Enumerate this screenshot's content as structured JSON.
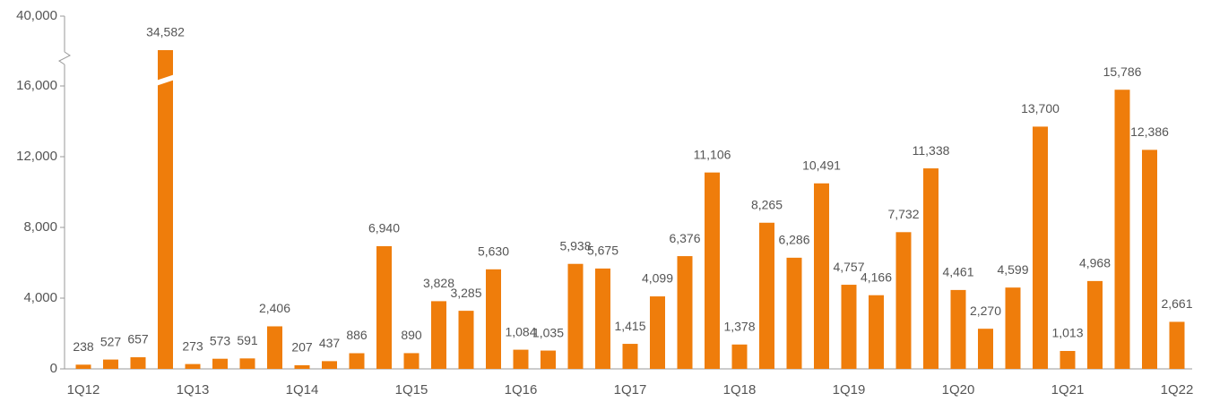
{
  "chart_data": {
    "type": "bar",
    "categories": [
      "1Q12",
      null,
      null,
      null,
      "1Q13",
      null,
      null,
      null,
      "1Q14",
      null,
      null,
      null,
      "1Q15",
      null,
      null,
      null,
      "1Q16",
      null,
      null,
      null,
      "1Q17",
      null,
      null,
      null,
      "1Q18",
      null,
      null,
      null,
      "1Q19",
      null,
      null,
      null,
      "1Q20",
      null,
      null,
      null,
      "1Q21",
      null,
      null,
      null,
      "1Q22"
    ],
    "values": [
      238,
      527,
      657,
      34582,
      273,
      573,
      591,
      2406,
      207,
      437,
      886,
      6940,
      890,
      3828,
      3285,
      5630,
      1084,
      1035,
      5938,
      5675,
      1415,
      4099,
      6376,
      11106,
      1378,
      8265,
      6286,
      10491,
      4757,
      4166,
      7732,
      11338,
      4461,
      2270,
      4599,
      13700,
      1013,
      4968,
      15786,
      12386,
      2661
    ],
    "value_labels": [
      "238",
      "527",
      "657",
      "34,582",
      "273",
      "573",
      "591",
      "2,406",
      "207",
      "437",
      "886",
      "6,940",
      "890",
      "3,828",
      "3,285",
      "5,630",
      "1,084",
      "1,035",
      "5,938",
      "5,675",
      "1,415",
      "4,099",
      "6,376",
      "11,106",
      "1,378",
      "8,265",
      "6,286",
      "10,491",
      "4,757",
      "4,166",
      "7,732",
      "11,338",
      "4,461",
      "2,270",
      "4,599",
      "13,700",
      "1,013",
      "4,968",
      "15,786",
      "12,386",
      "2,661"
    ],
    "color": "#ef7d0b",
    "ylim": [
      0,
      40000
    ],
    "yticks": [
      0,
      {
        "value": 4000,
        "label": "4,000"
      },
      {
        "value": 8000,
        "label": "8,000"
      },
      {
        "value": 12000,
        "label": "12,000"
      },
      {
        "value": 16000,
        "label": "16,000"
      },
      {
        "value": 40000,
        "label": "40,000"
      }
    ],
    "y_axis_break": true
  }
}
